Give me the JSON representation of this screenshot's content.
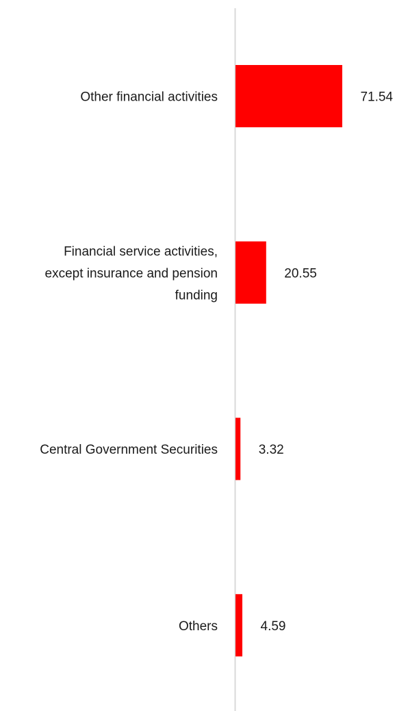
{
  "chart_data": {
    "type": "bar",
    "orientation": "horizontal",
    "categories": [
      "Other financial activities",
      "Financial service activities, except insurance and pension funding",
      "Central Government Securities",
      "Others"
    ],
    "category_lines": [
      [
        "Other financial activities"
      ],
      [
        "Financial service activities,",
        "except insurance and pension",
        "funding"
      ],
      [
        "Central Government Securities"
      ],
      [
        "Others"
      ]
    ],
    "values": [
      71.54,
      20.55,
      3.32,
      4.59
    ],
    "value_labels": [
      "71.54",
      "20.55",
      "3.32",
      "4.59"
    ],
    "xlim": [
      0,
      100
    ],
    "grid": false,
    "legend": "none",
    "colors": {
      "bar": "#ff0000",
      "axis": "#d9d9d9",
      "text": "#1a1a1a"
    }
  }
}
